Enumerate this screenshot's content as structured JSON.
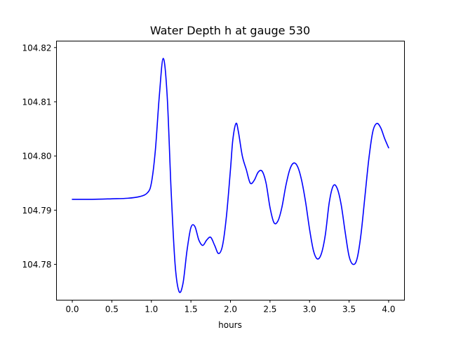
{
  "chart_data": {
    "type": "line",
    "title": "Water Depth h at gauge 530",
    "xlabel": "hours",
    "ylabel": "",
    "xlim": [
      -0.2,
      4.2
    ],
    "ylim": [
      104.7734,
      104.8212
    ],
    "xticks": [
      {
        "value": 0.0,
        "label": "0.0"
      },
      {
        "value": 0.5,
        "label": "0.5"
      },
      {
        "value": 1.0,
        "label": "1.0"
      },
      {
        "value": 1.5,
        "label": "1.5"
      },
      {
        "value": 2.0,
        "label": "2.0"
      },
      {
        "value": 2.5,
        "label": "2.5"
      },
      {
        "value": 3.0,
        "label": "3.0"
      },
      {
        "value": 3.5,
        "label": "3.5"
      },
      {
        "value": 4.0,
        "label": "4.0"
      }
    ],
    "yticks": [
      {
        "value": 104.78,
        "label": "104.78"
      },
      {
        "value": 104.79,
        "label": "104.79"
      },
      {
        "value": 104.8,
        "label": "104.80"
      },
      {
        "value": 104.81,
        "label": "104.81"
      },
      {
        "value": 104.82,
        "label": "104.82"
      }
    ],
    "grid": false,
    "series": [
      {
        "color": "#0000ff",
        "x": [
          0.0,
          0.25,
          0.5,
          0.7,
          0.85,
          0.95,
          1.0,
          1.05,
          1.1,
          1.15,
          1.2,
          1.25,
          1.3,
          1.35,
          1.4,
          1.45,
          1.5,
          1.55,
          1.6,
          1.65,
          1.7,
          1.75,
          1.8,
          1.85,
          1.9,
          1.95,
          2.0,
          2.03,
          2.07,
          2.1,
          2.15,
          2.2,
          2.25,
          2.3,
          2.35,
          2.4,
          2.45,
          2.5,
          2.55,
          2.6,
          2.65,
          2.7,
          2.75,
          2.8,
          2.85,
          2.9,
          2.95,
          3.0,
          3.05,
          3.1,
          3.15,
          3.2,
          3.25,
          3.3,
          3.35,
          3.4,
          3.45,
          3.5,
          3.55,
          3.6,
          3.65,
          3.7,
          3.75,
          3.8,
          3.85,
          3.9,
          3.95,
          4.0
        ],
        "y": [
          104.792,
          104.792,
          104.7921,
          104.7922,
          104.7925,
          104.7932,
          104.795,
          104.801,
          104.811,
          104.818,
          104.811,
          104.7935,
          104.78,
          104.775,
          104.7765,
          104.7825,
          104.7868,
          104.787,
          104.7845,
          104.7835,
          104.7845,
          104.785,
          104.7835,
          104.782,
          104.7835,
          104.789,
          104.7975,
          104.803,
          104.806,
          104.8045,
          104.8,
          104.7975,
          104.795,
          104.7955,
          104.797,
          104.7972,
          104.795,
          104.7905,
          104.7877,
          104.788,
          104.7905,
          104.7945,
          104.7975,
          104.7987,
          104.798,
          104.7955,
          104.7915,
          104.7865,
          104.7825,
          104.781,
          104.782,
          104.7855,
          104.7915,
          104.7945,
          104.794,
          104.791,
          104.786,
          104.7815,
          104.78,
          104.781,
          104.7855,
          104.7925,
          104.7995,
          104.8045,
          104.806,
          104.8052,
          104.8032,
          104.8015
        ]
      }
    ]
  }
}
